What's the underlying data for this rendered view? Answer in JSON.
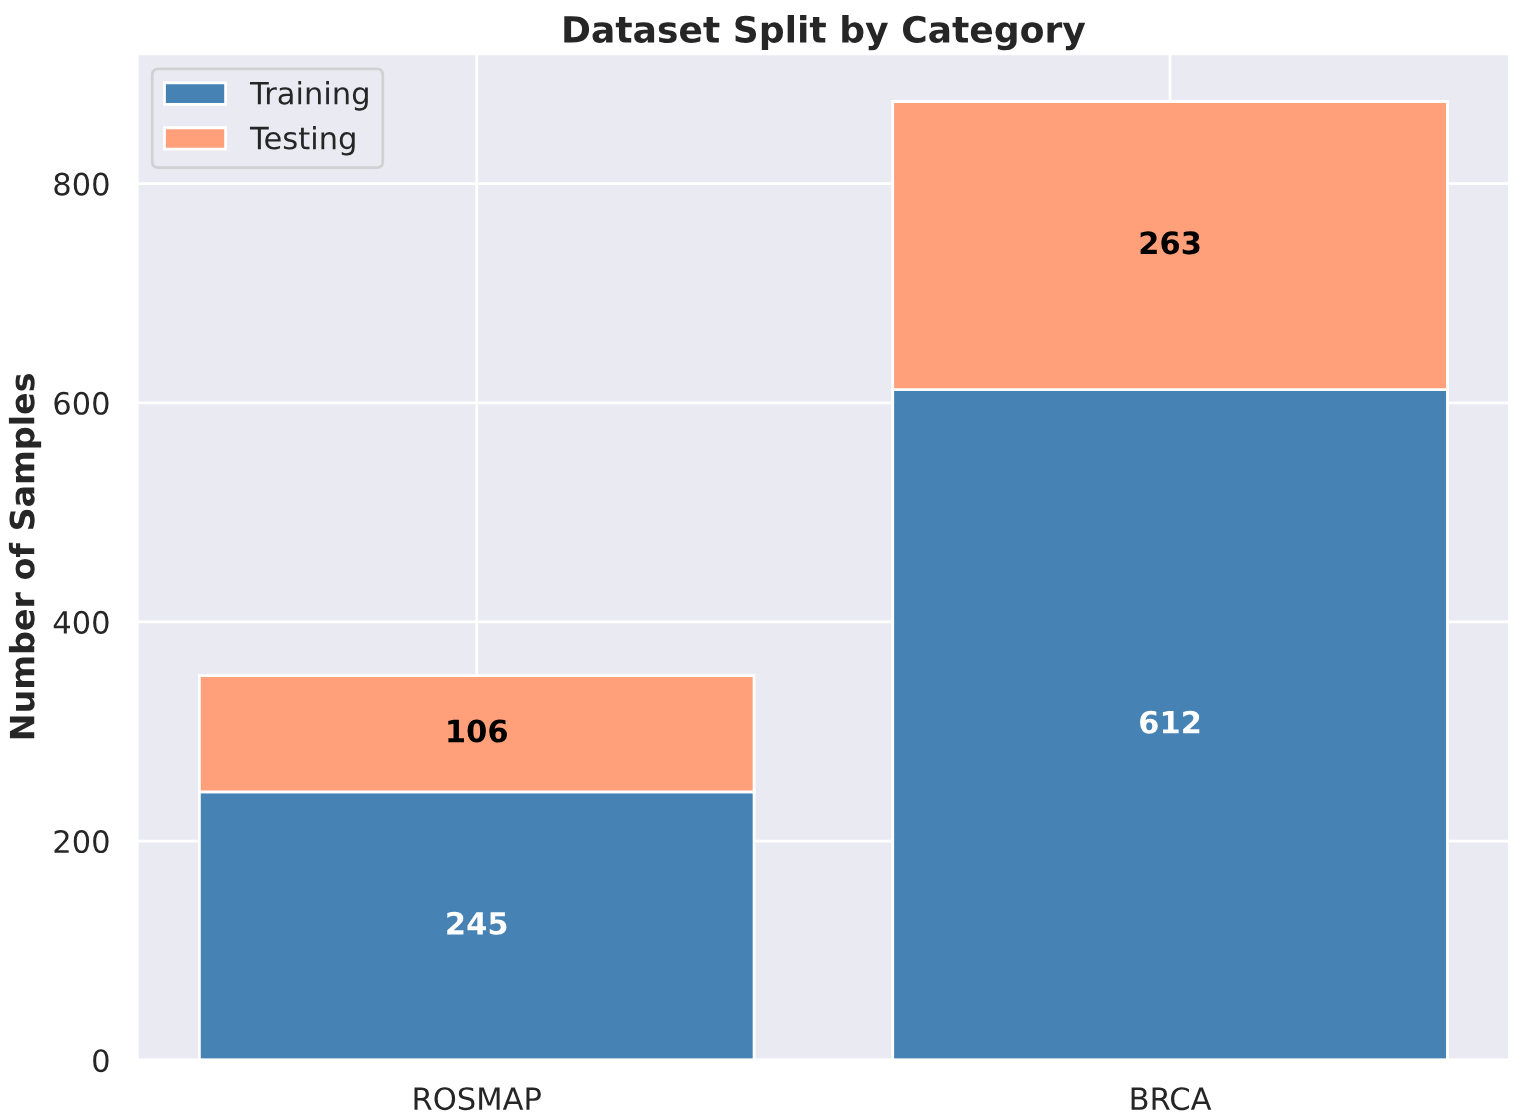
{
  "chart_data": {
    "type": "bar",
    "title": "Dataset Split by Category",
    "ylabel": "Number of Samples",
    "categories": [
      "ROSMAP",
      "BRCA"
    ],
    "stacked": true,
    "series": [
      {
        "name": "Training",
        "color": "#4682b4",
        "values": [
          245,
          612
        ]
      },
      {
        "name": "Testing",
        "color": "#ffa07a",
        "values": [
          106,
          263
        ]
      }
    ],
    "ylim": [
      0,
      918.75
    ],
    "yticks": [
      0,
      200,
      400,
      600,
      800
    ],
    "grid": true,
    "legend": "top left",
    "data_labels": true
  }
}
